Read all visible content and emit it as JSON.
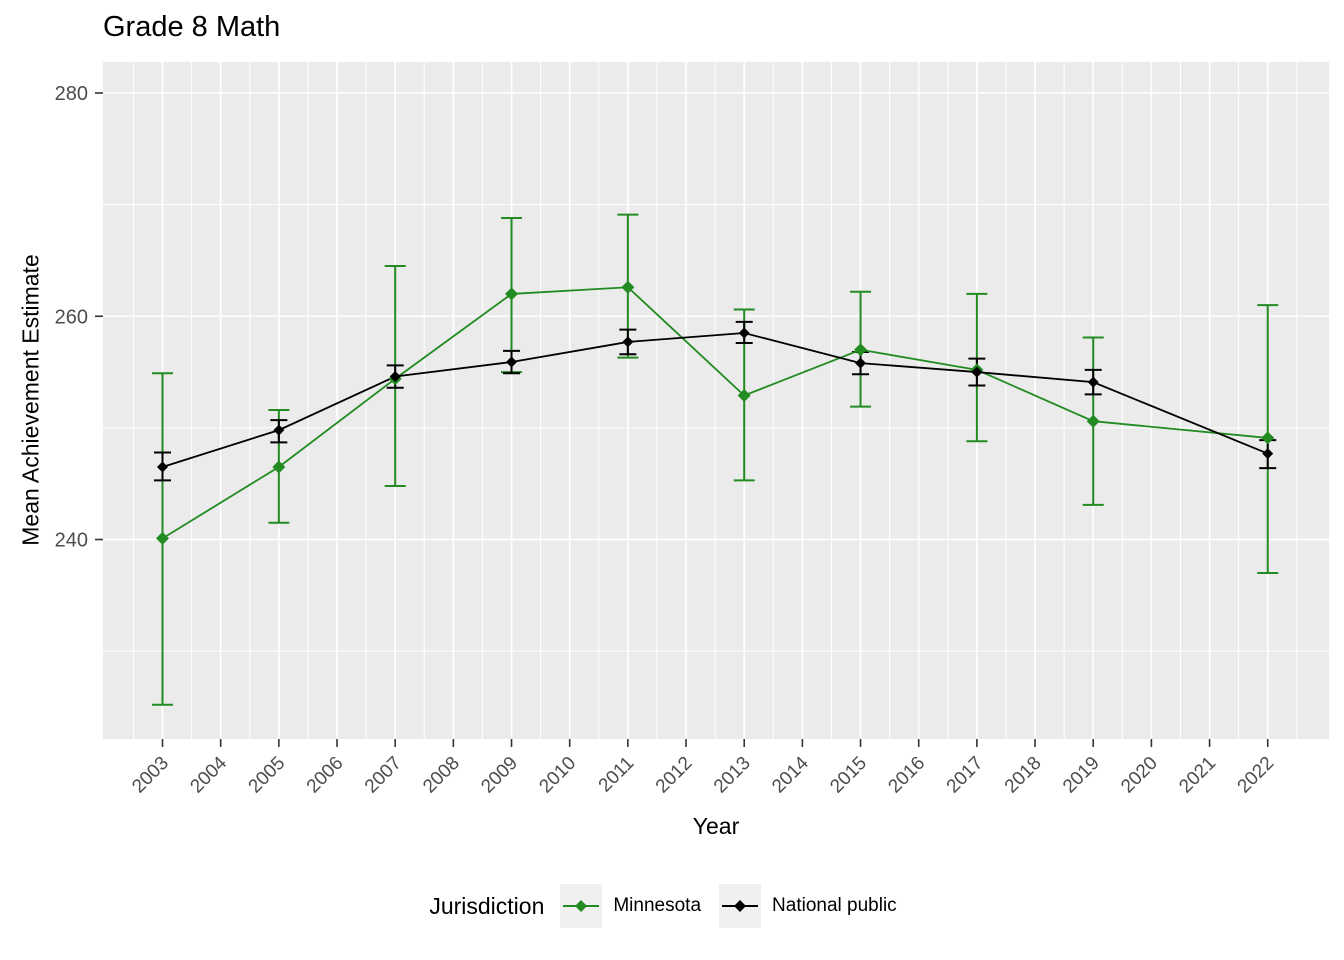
{
  "title": "Grade 8 Math",
  "chart_data": {
    "type": "line",
    "title": "Grade 8 Math",
    "xlabel": "Year",
    "ylabel": "Mean Achievement Estimate",
    "x_ticks": [
      2003,
      2004,
      2005,
      2006,
      2007,
      2008,
      2009,
      2010,
      2011,
      2012,
      2013,
      2014,
      2015,
      2016,
      2017,
      2018,
      2019,
      2020,
      2021,
      2022
    ],
    "y_ticks": [
      240,
      260,
      280
    ],
    "y_minor_ticks": [
      230,
      250,
      270
    ],
    "ylim": [
      222,
      283
    ],
    "xlim": [
      2002.5,
      2023.5
    ],
    "grid": "major+minor, white on gray panel",
    "panel_bg": "#EBEBEB",
    "grid_color": "#FFFFFF",
    "tick_color": "#333333",
    "tick_label_color": "#4D4D4D",
    "legend": {
      "title": "Jurisdiction",
      "position": "bottom"
    },
    "series": [
      {
        "name": "Minnesota",
        "color": "#228B22",
        "marker": "diamond",
        "error_bars": true,
        "points": [
          {
            "year": 2003,
            "value": 240.1,
            "lo": 225.2,
            "hi": 254.9
          },
          {
            "year": 2005,
            "value": 246.5,
            "lo": 241.5,
            "hi": 251.6
          },
          {
            "year": 2007,
            "value": 254.4,
            "lo": 244.8,
            "hi": 264.5
          },
          {
            "year": 2009,
            "value": 262.0,
            "lo": 255.0,
            "hi": 268.8
          },
          {
            "year": 2011,
            "value": 262.6,
            "lo": 256.3,
            "hi": 269.1
          },
          {
            "year": 2013,
            "value": 252.9,
            "lo": 245.3,
            "hi": 260.6
          },
          {
            "year": 2015,
            "value": 257.0,
            "lo": 251.9,
            "hi": 262.2
          },
          {
            "year": 2017,
            "value": 255.2,
            "lo": 248.8,
            "hi": 262.0
          },
          {
            "year": 2019,
            "value": 250.6,
            "lo": 243.1,
            "hi": 258.1
          },
          {
            "year": 2022,
            "value": 249.1,
            "lo": 237.0,
            "hi": 261.0
          }
        ]
      },
      {
        "name": "National public",
        "color": "#000000",
        "marker": "diamond",
        "error_bars": true,
        "points": [
          {
            "year": 2003,
            "value": 246.5,
            "lo": 245.3,
            "hi": 247.8
          },
          {
            "year": 2005,
            "value": 249.8,
            "lo": 248.7,
            "hi": 250.7
          },
          {
            "year": 2007,
            "value": 254.6,
            "lo": 253.6,
            "hi": 255.6
          },
          {
            "year": 2009,
            "value": 255.9,
            "lo": 254.9,
            "hi": 256.9
          },
          {
            "year": 2011,
            "value": 257.7,
            "lo": 256.6,
            "hi": 258.8
          },
          {
            "year": 2013,
            "value": 258.5,
            "lo": 257.6,
            "hi": 259.5
          },
          {
            "year": 2015,
            "value": 255.8,
            "lo": 254.8,
            "hi": 256.8
          },
          {
            "year": 2017,
            "value": 255.0,
            "lo": 253.8,
            "hi": 256.2
          },
          {
            "year": 2019,
            "value": 254.1,
            "lo": 253.0,
            "hi": 255.2
          },
          {
            "year": 2022,
            "value": 247.7,
            "lo": 246.4,
            "hi": 248.9
          }
        ]
      }
    ]
  }
}
